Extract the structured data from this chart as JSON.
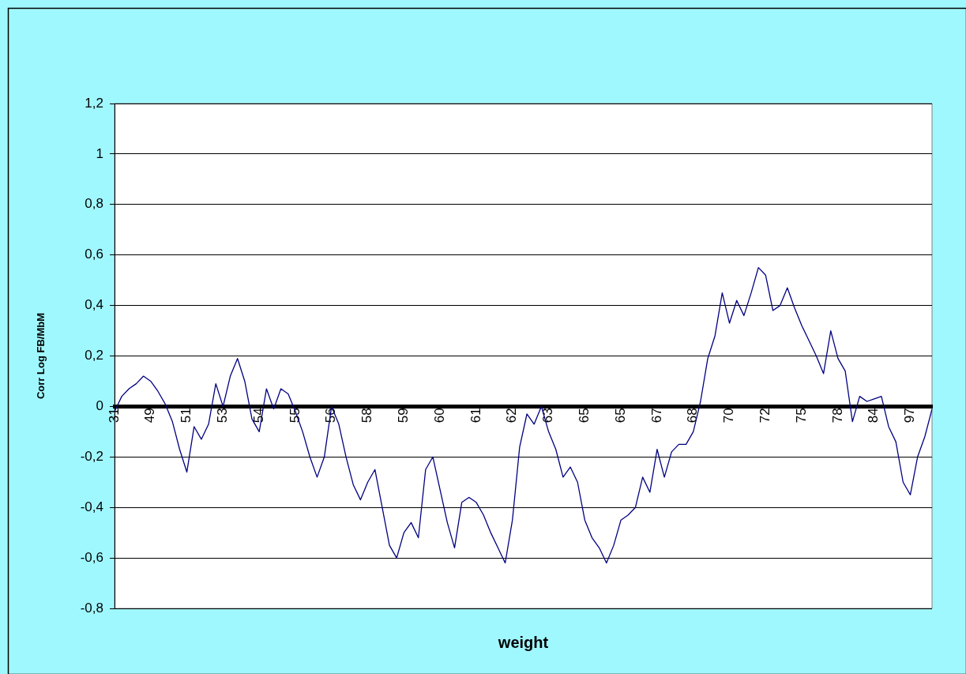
{
  "chart_data": {
    "type": "line",
    "xlabel": "weight",
    "ylabel": "Corr Log FB/MbM",
    "categories": [
      "31",
      null,
      null,
      null,
      null,
      "49",
      null,
      null,
      null,
      null,
      "51",
      null,
      null,
      null,
      null,
      "53",
      null,
      null,
      null,
      null,
      "54",
      null,
      null,
      null,
      null,
      "55",
      null,
      null,
      null,
      null,
      "56",
      null,
      null,
      null,
      null,
      "58",
      null,
      null,
      null,
      null,
      "59",
      null,
      null,
      null,
      null,
      "60",
      null,
      null,
      null,
      null,
      "61",
      null,
      null,
      null,
      null,
      "62",
      null,
      null,
      null,
      null,
      "63",
      null,
      null,
      null,
      null,
      "65",
      null,
      null,
      null,
      null,
      "65",
      null,
      null,
      null,
      null,
      "67",
      null,
      null,
      null,
      null,
      "68",
      null,
      null,
      null,
      null,
      "70",
      null,
      null,
      null,
      null,
      "72",
      null,
      null,
      null,
      null,
      "75",
      null,
      null,
      null,
      null,
      "78",
      null,
      null,
      null,
      null,
      "84",
      null,
      null,
      null,
      null,
      "97",
      null,
      null,
      null
    ],
    "series": [
      {
        "color": "#000080",
        "values": [
          -0.02,
          0.04,
          0.07,
          0.09,
          0.12,
          0.1,
          0.06,
          0.01,
          -0.06,
          -0.17,
          -0.26,
          -0.08,
          -0.13,
          -0.07,
          0.09,
          0.0,
          0.12,
          0.19,
          0.1,
          -0.05,
          -0.1,
          0.07,
          -0.01,
          0.07,
          0.05,
          -0.02,
          -0.1,
          -0.2,
          -0.28,
          -0.2,
          0.0,
          -0.07,
          -0.2,
          -0.31,
          -0.37,
          -0.3,
          -0.25,
          -0.4,
          -0.55,
          -0.6,
          -0.5,
          -0.46,
          -0.52,
          -0.25,
          -0.2,
          -0.33,
          -0.46,
          -0.56,
          -0.38,
          -0.36,
          -0.38,
          -0.43,
          -0.5,
          -0.56,
          -0.62,
          -0.45,
          -0.16,
          -0.03,
          -0.07,
          0.0,
          -0.1,
          -0.17,
          -0.28,
          -0.24,
          -0.3,
          -0.45,
          -0.52,
          -0.56,
          -0.62,
          -0.55,
          -0.45,
          -0.43,
          -0.4,
          -0.28,
          -0.34,
          -0.17,
          -0.28,
          -0.18,
          -0.15,
          -0.15,
          -0.1,
          0.02,
          0.19,
          0.28,
          0.45,
          0.33,
          0.42,
          0.36,
          0.45,
          0.55,
          0.52,
          0.38,
          0.4,
          0.47,
          0.39,
          0.32,
          0.26,
          0.2,
          0.13,
          0.3,
          0.19,
          0.14,
          -0.06,
          0.04,
          0.02,
          0.03,
          0.04,
          -0.08,
          -0.14,
          -0.3,
          -0.35,
          -0.2,
          -0.12,
          -0.01
        ]
      }
    ],
    "ylim": [
      -0.8,
      1.2
    ],
    "yticks": [
      {
        "value": -0.8,
        "label": "-0,8"
      },
      {
        "value": -0.6,
        "label": "-0,6"
      },
      {
        "value": -0.4,
        "label": "-0,4"
      },
      {
        "value": -0.2,
        "label": "-0,2"
      },
      0,
      {
        "value": 0.2,
        "label": "0,2"
      },
      {
        "value": 0.4,
        "label": "0,4"
      },
      {
        "value": 0.6,
        "label": "0,6"
      },
      {
        "value": 0.8,
        "label": "0,8"
      },
      1,
      {
        "value": 1.2,
        "label": "1,2"
      }
    ],
    "grid": "y",
    "marker": "none",
    "line_style": "solid"
  }
}
